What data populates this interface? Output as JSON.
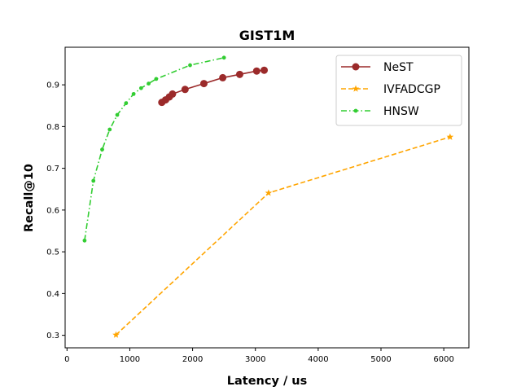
{
  "chart_data": {
    "type": "line",
    "title": "GIST1M",
    "xlabel": "Latency / us",
    "ylabel": "Recall@10",
    "xlim": [
      -30,
      6400
    ],
    "ylim": [
      0.27,
      0.99
    ],
    "xticks": [
      0,
      1000,
      2000,
      3000,
      4000,
      5000,
      6000
    ],
    "yticks": [
      0.3,
      0.4,
      0.5,
      0.6,
      0.7,
      0.8,
      0.9
    ],
    "xtick_labels": [
      "0",
      "1000",
      "2000",
      "3000",
      "4000",
      "5000",
      "6000"
    ],
    "ytick_labels": [
      "0.3",
      "0.4",
      "0.5",
      "0.6",
      "0.7",
      "0.8",
      "0.9"
    ],
    "grid": false,
    "legend_position": "top-right",
    "series": [
      {
        "name": "NeST",
        "color": "#9b2a2a",
        "line_style": "solid",
        "marker": "circle",
        "x": [
          1510,
          1570,
          1630,
          1680,
          1880,
          2180,
          2480,
          2750,
          3020,
          3140
        ],
        "y": [
          0.858,
          0.864,
          0.871,
          0.878,
          0.889,
          0.903,
          0.917,
          0.925,
          0.933,
          0.935
        ]
      },
      {
        "name": "IVFADCGP",
        "color": "#ffa500",
        "line_style": "dashed",
        "marker": "star",
        "x": [
          780,
          3210,
          6100
        ],
        "y": [
          0.301,
          0.641,
          0.775
        ]
      },
      {
        "name": "HNSW",
        "color": "#32cd32",
        "line_style": "dashdot",
        "marker": "dot",
        "x": [
          280,
          420,
          560,
          680,
          800,
          940,
          1060,
          1180,
          1300,
          1420,
          1960,
          2500
        ],
        "y": [
          0.527,
          0.67,
          0.745,
          0.793,
          0.828,
          0.856,
          0.878,
          0.892,
          0.903,
          0.914,
          0.947,
          0.965
        ]
      }
    ]
  }
}
